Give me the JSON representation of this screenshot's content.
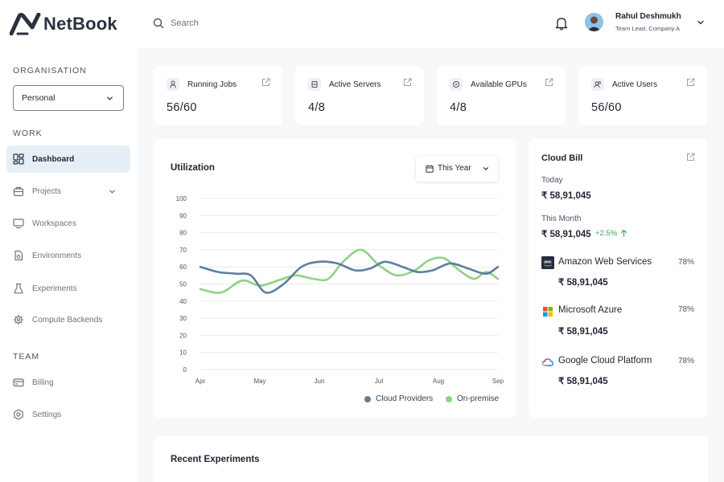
{
  "app": {
    "logo_text": "NetBook"
  },
  "header": {
    "search_placeholder": "Search",
    "user": {
      "name": "Rahul Deshmukh",
      "role": "Team Lead, Company A"
    }
  },
  "sidebar": {
    "organisation_label": "ORGANISATION",
    "organisation_value": "Personal",
    "work_label": "WORK",
    "work_items": [
      {
        "label": "Dashboard",
        "icon": "dashboard-icon",
        "active": true
      },
      {
        "label": "Projects",
        "icon": "projects-icon",
        "expandable": true
      },
      {
        "label": "Workspaces",
        "icon": "workspaces-icon"
      },
      {
        "label": "Environments",
        "icon": "environments-icon"
      },
      {
        "label": "Experiments",
        "icon": "experiments-icon"
      },
      {
        "label": "Compute Backends",
        "icon": "compute-icon"
      }
    ],
    "team_label": "TEAM",
    "team_items": [
      {
        "label": "Billing",
        "icon": "billing-icon"
      },
      {
        "label": "Settings",
        "icon": "settings-icon"
      }
    ]
  },
  "stats": [
    {
      "label": "Running Jobs",
      "value": "56/60",
      "icon": "person-icon"
    },
    {
      "label": "Active Servers",
      "value": "4/8",
      "icon": "server-icon"
    },
    {
      "label": "Available GPUs",
      "value": "4/8",
      "icon": "gpu-icon"
    },
    {
      "label": "Active Users",
      "value": "56/60",
      "icon": "users-icon"
    }
  ],
  "utilization": {
    "title": "Utilization",
    "period": "This Year"
  },
  "chart_data": {
    "type": "line",
    "title": "Utilization",
    "x": [
      "Apr",
      "May",
      "Jun",
      "Jul",
      "Aug",
      "Sep"
    ],
    "y_ticks": [
      0,
      10,
      20,
      30,
      40,
      50,
      60,
      70,
      80,
      90,
      100
    ],
    "ylim": [
      0,
      100
    ],
    "legend_position": "bottom-right",
    "grid": true,
    "series": [
      {
        "name": "Cloud Providers",
        "color": "#5b7f9f",
        "x": [
          0,
          0.3,
          0.6,
          0.85,
          1.1,
          1.4,
          1.7,
          2.0,
          2.3,
          2.6,
          2.85,
          3.1,
          3.4,
          3.65,
          3.9,
          4.2,
          4.5,
          4.8,
          5.0
        ],
        "values": [
          60,
          57,
          56,
          55,
          45,
          50,
          60,
          63,
          62,
          58,
          59,
          63,
          60,
          57,
          58,
          62,
          59,
          56,
          60
        ]
      },
      {
        "name": "On-premise",
        "color": "#8fd284",
        "x": [
          0,
          0.35,
          0.7,
          1.0,
          1.3,
          1.6,
          1.9,
          2.15,
          2.4,
          2.7,
          3.0,
          3.3,
          3.6,
          3.85,
          4.1,
          4.35,
          4.6,
          4.8,
          5.0
        ],
        "values": [
          47,
          45,
          52,
          49,
          52,
          55,
          53,
          53,
          63,
          70,
          61,
          55,
          58,
          64,
          65,
          58,
          53,
          57,
          53
        ]
      }
    ]
  },
  "cloud_bill": {
    "title": "Cloud Bill",
    "today_label": "Today",
    "today_amount": "₹ 58,91,045",
    "month_label": "This Month",
    "month_amount": "₹ 58,91,045",
    "month_change": "+2.5%",
    "providers": [
      {
        "name": "Amazon Web Services",
        "percent": "78%",
        "amount": "₹ 58,91,045",
        "icon": "aws-icon"
      },
      {
        "name": "Microsoft Azure",
        "percent": "78%",
        "amount": "₹ 58,91,045",
        "icon": "microsoft-icon"
      },
      {
        "name": "Google Cloud Platform",
        "percent": "78%",
        "amount": "₹ 58,91,045",
        "icon": "google-cloud-icon"
      }
    ]
  },
  "recent_experiments": {
    "title": "Recent Experiments"
  },
  "colors": {
    "accent": "#1f2430",
    "active_nav": "#e6eef7",
    "positive": "#3aa655"
  }
}
